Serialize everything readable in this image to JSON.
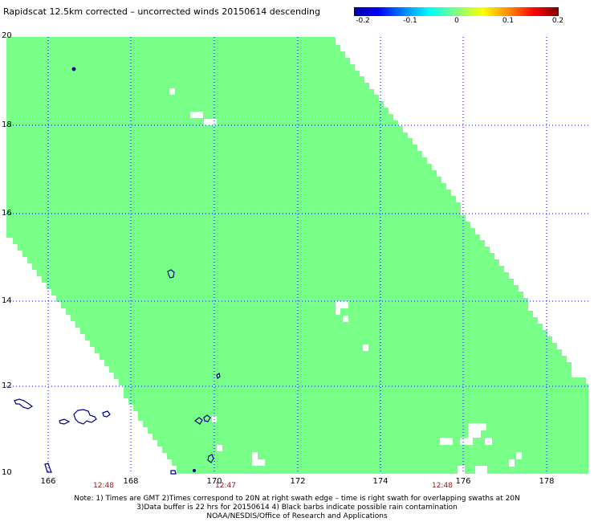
{
  "title": "Rapidscat 12.5km corrected – uncorrected winds 20150614 descending",
  "colorbar": {
    "tick_labels": [
      "-0.2",
      "-0.1",
      "0",
      "0.1",
      "0.2"
    ],
    "colors": [
      "#0000a0",
      "#0000ff",
      "#00ffff",
      "#7fff7f",
      "#ffff00",
      "#ff9000",
      "#ff0000",
      "#7a0000"
    ]
  },
  "map": {
    "lat_labels": [
      "20",
      "18",
      "16",
      "14",
      "12",
      "10"
    ],
    "lon_labels": [
      "166",
      "168",
      "170",
      "172",
      "174",
      "176",
      "178"
    ],
    "time_labels": [
      "12:48",
      "12:47",
      "12:48"
    ],
    "swath_color": "#77ff88",
    "island_color": "#00008b"
  },
  "notes": {
    "line1": "Note: 1) Times are GMT 2)Times correspond to 20N at right swath edge – time is right swath for overlapping swaths at 20N",
    "line2": "3)Data buffer is 22 hrs for 20150614 4) Black barbs indicate possible rain contamination",
    "line3": "NOAA/NESDIS/Office of Research and Applications"
  }
}
